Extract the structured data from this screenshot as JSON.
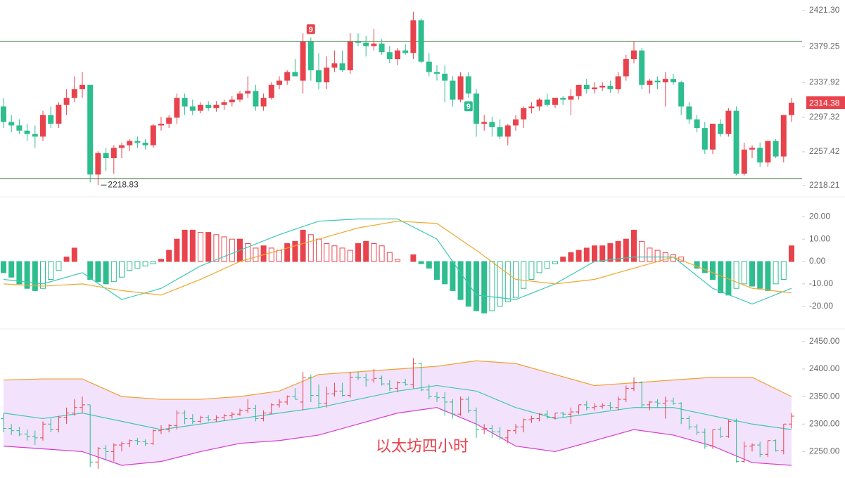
{
  "chart_data": [
    {
      "type": "candlestick",
      "up_color": "#e8434c",
      "down_color": "#2ebd8e",
      "open": [
        2310,
        2292,
        2288,
        2282,
        2278,
        2275,
        2300,
        2290,
        2312,
        2320,
        2330,
        2335,
        2231,
        2256,
        2250,
        2262,
        2265,
        2270,
        2268,
        2265,
        2288,
        2290,
        2297,
        2320,
        2310,
        2305,
        2312,
        2308,
        2312,
        2315,
        2318,
        2325,
        2328,
        2310,
        2320,
        2335,
        2340,
        2350,
        2340,
        2385,
        2352,
        2338,
        2355,
        2360,
        2352,
        2385,
        2384,
        2380,
        2383,
        2373,
        2365,
        2375,
        2372,
        2410,
        2362,
        2350,
        2348,
        2340,
        2318,
        2345,
        2325,
        2290,
        2292,
        2286,
        2275,
        2288,
        2295,
        2308,
        2310,
        2318,
        2312,
        2320,
        2318,
        2322,
        2335,
        2330,
        2332,
        2334,
        2330,
        2345,
        2365,
        2375,
        2335,
        2340,
        2338,
        2342,
        2338,
        2310,
        2295,
        2285,
        2260,
        2290,
        2278,
        2305,
        2232,
        2260,
        2262,
        2245,
        2270,
        2252,
        2300
      ],
      "high": [
        2320,
        2300,
        2295,
        2290,
        2288,
        2305,
        2310,
        2315,
        2330,
        2345,
        2350,
        2335,
        2258,
        2262,
        2265,
        2268,
        2272,
        2275,
        2272,
        2290,
        2298,
        2300,
        2325,
        2325,
        2318,
        2315,
        2316,
        2316,
        2318,
        2322,
        2328,
        2345,
        2335,
        2325,
        2338,
        2345,
        2352,
        2365,
        2395,
        2390,
        2372,
        2368,
        2375,
        2375,
        2395,
        2395,
        2392,
        2400,
        2388,
        2380,
        2378,
        2382,
        2420,
        2412,
        2372,
        2358,
        2358,
        2345,
        2350,
        2350,
        2330,
        2300,
        2298,
        2295,
        2290,
        2300,
        2310,
        2315,
        2320,
        2325,
        2320,
        2322,
        2330,
        2335,
        2342,
        2338,
        2338,
        2340,
        2350,
        2370,
        2385,
        2378,
        2342,
        2345,
        2350,
        2348,
        2340,
        2315,
        2300,
        2292,
        2290,
        2295,
        2308,
        2310,
        2268,
        2265,
        2268,
        2270,
        2272,
        2300,
        2320
      ],
      "low": [
        2285,
        2280,
        2278,
        2270,
        2262,
        2270,
        2285,
        2285,
        2300,
        2315,
        2320,
        2222,
        2218.83,
        2235,
        2232,
        2250,
        2258,
        2262,
        2260,
        2262,
        2282,
        2285,
        2290,
        2300,
        2300,
        2302,
        2305,
        2304,
        2306,
        2310,
        2315,
        2320,
        2305,
        2305,
        2318,
        2330,
        2335,
        2345,
        2325,
        2340,
        2330,
        2330,
        2350,
        2350,
        2348,
        2380,
        2368,
        2375,
        2370,
        2360,
        2358,
        2370,
        2365,
        2360,
        2345,
        2340,
        2315,
        2310,
        2315,
        2320,
        2275,
        2282,
        2275,
        2272,
        2265,
        2282,
        2285,
        2302,
        2305,
        2310,
        2308,
        2312,
        2300,
        2318,
        2325,
        2325,
        2328,
        2326,
        2325,
        2340,
        2360,
        2330,
        2325,
        2330,
        2310,
        2335,
        2300,
        2290,
        2280,
        2255,
        2255,
        2275,
        2275,
        2230,
        2230,
        2250,
        2240,
        2240,
        2250,
        2245,
        2292
      ],
      "close": [
        2292,
        2288,
        2282,
        2278,
        2275,
        2300,
        2290,
        2312,
        2320,
        2330,
        2335,
        2231,
        2256,
        2250,
        2262,
        2265,
        2270,
        2268,
        2265,
        2288,
        2290,
        2297,
        2320,
        2310,
        2305,
        2312,
        2308,
        2312,
        2315,
        2318,
        2325,
        2328,
        2310,
        2320,
        2335,
        2340,
        2350,
        2345,
        2385,
        2352,
        2338,
        2355,
        2360,
        2352,
        2385,
        2384,
        2380,
        2383,
        2373,
        2365,
        2375,
        2372,
        2410,
        2362,
        2350,
        2348,
        2340,
        2318,
        2345,
        2325,
        2290,
        2292,
        2286,
        2275,
        2288,
        2295,
        2308,
        2310,
        2318,
        2312,
        2320,
        2318,
        2322,
        2335,
        2330,
        2332,
        2334,
        2330,
        2345,
        2365,
        2375,
        2335,
        2340,
        2338,
        2342,
        2338,
        2310,
        2295,
        2285,
        2260,
        2290,
        2278,
        2305,
        2232,
        2260,
        2262,
        2245,
        2270,
        2252,
        2300,
        2314.38
      ],
      "hlines": [
        2385.4,
        2226.4
      ],
      "hline_color": "#2e6b2e",
      "markers": [
        {
          "index": 39,
          "label": "9",
          "position": "above",
          "color": "#e8434c"
        },
        {
          "index": 59,
          "label": "9",
          "position": "below",
          "color": "#2ebd8e"
        }
      ],
      "ylim": [
        2218.21,
        2421.3
      ],
      "yticks": [
        {
          "value": 2421.3,
          "label": "2421.30"
        },
        {
          "value": 2379.25,
          "label": "2379.25"
        },
        {
          "value": 2337.92,
          "label": "2337.92"
        },
        {
          "value": 2297.32,
          "label": "2297.32"
        },
        {
          "value": 2257.42,
          "label": "2257.42"
        },
        {
          "value": 2218.21,
          "label": "2218.21"
        }
      ]
    },
    {
      "type": "macd",
      "histogram": [
        -5,
        -7,
        -10,
        -12,
        -13,
        -12,
        -8,
        -4,
        2,
        6,
        0,
        -8,
        -9,
        -10,
        -9,
        -7,
        -4,
        -3,
        -2,
        -1,
        1,
        5,
        10,
        14,
        14,
        13,
        13,
        12,
        11,
        10,
        10,
        8,
        6,
        7,
        6,
        5,
        8,
        9,
        14,
        12,
        10,
        8,
        7,
        6,
        5,
        8,
        9,
        8,
        7,
        4,
        1,
        0,
        3,
        -1,
        -3,
        -8,
        -10,
        -13,
        -17,
        -20,
        -22,
        -23,
        -22,
        -20,
        -18,
        -16,
        -12,
        -8,
        -5,
        -3,
        -1,
        2,
        4,
        5,
        6,
        7,
        7,
        8,
        9,
        10,
        14,
        9,
        6,
        5,
        4,
        3,
        2,
        0,
        -3,
        -5,
        -8,
        -14,
        -15,
        -12,
        -10,
        -11,
        -12,
        -13,
        -10,
        -8,
        7
      ],
      "line_x": [
        0,
        5,
        10,
        15,
        20,
        25,
        30,
        35,
        40,
        45,
        50,
        55,
        60,
        65,
        70,
        75,
        80,
        85,
        90,
        95,
        100
      ],
      "lines": [
        {
          "color": "#3cc8b4",
          "values": [
            -8,
            -10,
            -5,
            -17,
            -12,
            -2,
            5,
            12,
            18,
            19,
            19,
            10,
            -15,
            -17,
            -10,
            0,
            2,
            2,
            -12,
            -19,
            -12
          ]
        },
        {
          "color": "#f0a830",
          "values": [
            -10,
            -11,
            -10,
            -13,
            -15,
            -8,
            0,
            5,
            10,
            15,
            18,
            17,
            5,
            -8,
            -10,
            -8,
            -3,
            2,
            -5,
            -12,
            -14
          ]
        }
      ],
      "ylim": [
        -27,
        27
      ],
      "yticks": [
        {
          "value": 20,
          "label": "20.00"
        },
        {
          "value": 10,
          "label": "10.00"
        },
        {
          "value": 0,
          "label": "0.00"
        },
        {
          "value": -10,
          "label": "-10.00"
        },
        {
          "value": -20,
          "label": "-20.00"
        }
      ]
    },
    {
      "type": "bollinger",
      "annotation": "以太坊四小时",
      "band_color": "#f3e2fb",
      "line_x": [
        0,
        5,
        10,
        15,
        20,
        25,
        30,
        35,
        40,
        45,
        50,
        55,
        60,
        65,
        70,
        75,
        80,
        85,
        90,
        95,
        100
      ],
      "lines": [
        {
          "color": "#f0a030",
          "values": [
            2380,
            2382,
            2382,
            2350,
            2345,
            2345,
            2350,
            2360,
            2390,
            2395,
            2400,
            2405,
            2415,
            2410,
            2390,
            2370,
            2375,
            2380,
            2385,
            2385,
            2350
          ]
        },
        {
          "color": "#3cc8b4",
          "values": [
            2320,
            2310,
            2320,
            2305,
            2290,
            2300,
            2310,
            2320,
            2330,
            2345,
            2360,
            2370,
            2360,
            2330,
            2310,
            2320,
            2330,
            2330,
            2315,
            2300,
            2290
          ]
        },
        {
          "color": "#d63bd0",
          "values": [
            2260,
            2255,
            2250,
            2225,
            2232,
            2250,
            2265,
            2270,
            2280,
            2300,
            2320,
            2330,
            2300,
            2260,
            2250,
            2270,
            2290,
            2280,
            2260,
            2230,
            2225
          ]
        }
      ],
      "ylim": [
        2225,
        2460
      ],
      "yticks": [
        {
          "value": 2450,
          "label": "2450.00"
        },
        {
          "value": 2400,
          "label": "2400.00"
        },
        {
          "value": 2350,
          "label": "2350.00"
        },
        {
          "value": 2300,
          "label": "2300.00"
        },
        {
          "value": 2250,
          "label": "2250.00"
        }
      ]
    }
  ]
}
